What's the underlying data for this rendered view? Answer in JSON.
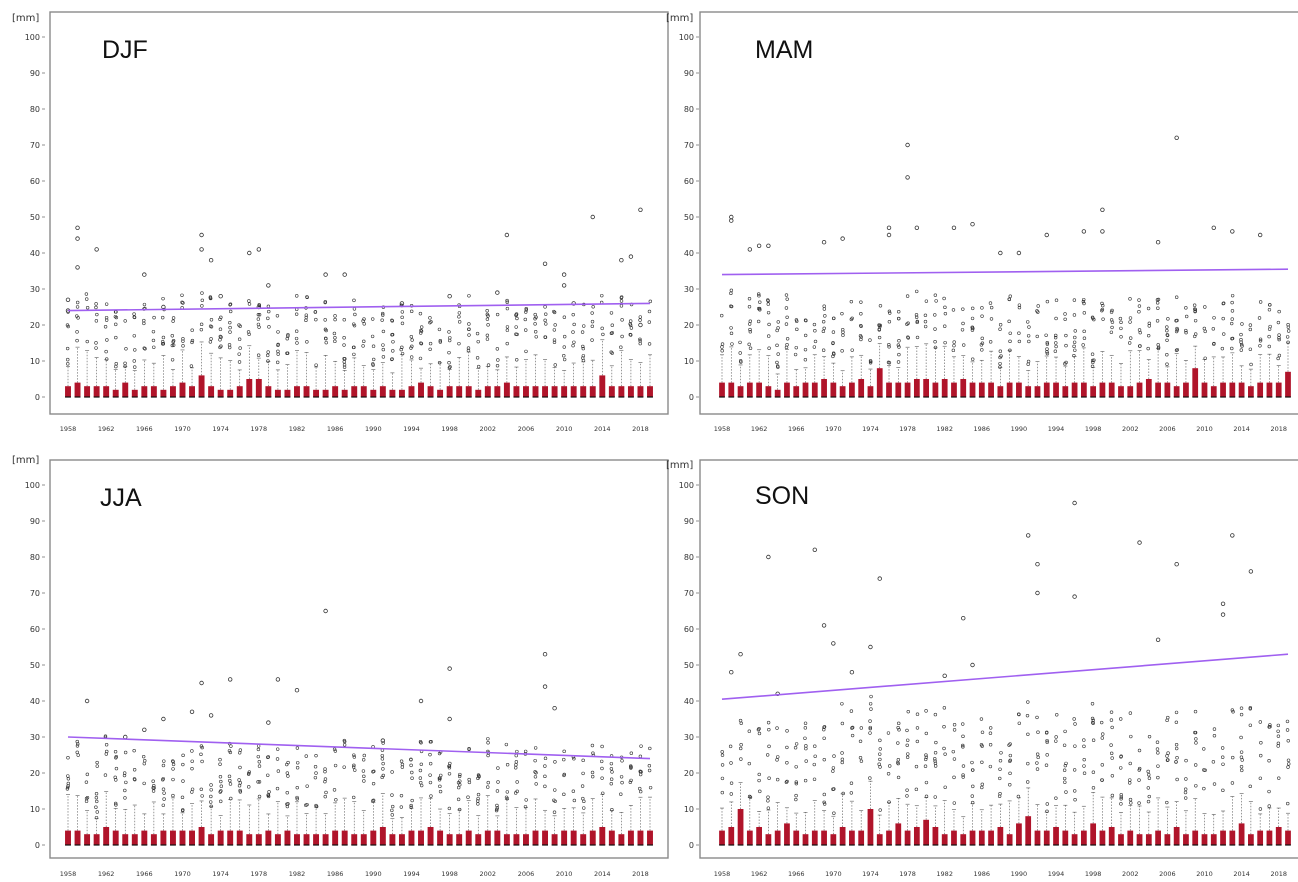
{
  "colors": {
    "box": "#b0142a",
    "whisker": "#555555",
    "outlier": "#333333",
    "trend": "#a060f0",
    "frame": "#8a8a8a"
  },
  "chart_data": [
    {
      "type": "box",
      "title": "DJF",
      "ylabel": "[mm]",
      "ylim": [
        0,
        100
      ],
      "yticks": [
        0,
        10,
        20,
        30,
        40,
        50,
        60,
        70,
        80,
        90,
        100
      ],
      "xticks": [
        "1958",
        "1962",
        "1966",
        "1970",
        "1974",
        "1978",
        "1982",
        "1986",
        "1990",
        "1994",
        "1998",
        "2002",
        "2006",
        "2010",
        "2014",
        "2018"
      ],
      "x_range": [
        1958,
        2019
      ],
      "trend": {
        "start": [
          1958,
          24
        ],
        "end": [
          2019,
          26
        ]
      },
      "box_heights": [
        3,
        4,
        3,
        3,
        3,
        2,
        4,
        2,
        3,
        3,
        2,
        3,
        4,
        3,
        6,
        3,
        2,
        2,
        3,
        5,
        5,
        3,
        2,
        2,
        3,
        3,
        2,
        2,
        3,
        2,
        3,
        3,
        2,
        3,
        2,
        2,
        3,
        4,
        3,
        2,
        3,
        3,
        3,
        2,
        3,
        3,
        4,
        3,
        3,
        3,
        3,
        3,
        3,
        3,
        3,
        3,
        6,
        3,
        3,
        3,
        3,
        3
      ],
      "outliers": [
        [
          1958,
          27
        ],
        [
          1958,
          24
        ],
        [
          1959,
          47
        ],
        [
          1959,
          44
        ],
        [
          1959,
          36
        ],
        [
          1961,
          41
        ],
        [
          1966,
          34
        ],
        [
          1968,
          25
        ],
        [
          1972,
          45
        ],
        [
          1972,
          41
        ],
        [
          1973,
          38
        ],
        [
          1974,
          28
        ],
        [
          1977,
          40
        ],
        [
          1978,
          41
        ],
        [
          1978,
          25
        ],
        [
          1979,
          31
        ],
        [
          1985,
          34
        ],
        [
          1987,
          34
        ],
        [
          1993,
          26
        ],
        [
          1998,
          28
        ],
        [
          2003,
          29
        ],
        [
          2004,
          45
        ],
        [
          2008,
          37
        ],
        [
          2010,
          34
        ],
        [
          2010,
          31
        ],
        [
          2011,
          26
        ],
        [
          2013,
          50
        ],
        [
          2016,
          38
        ],
        [
          2017,
          39
        ],
        [
          2018,
          52
        ],
        [
          2018,
          20
        ]
      ]
    },
    {
      "type": "box",
      "title": "MAM",
      "ylabel": "[mm]",
      "ylim": [
        0,
        100
      ],
      "yticks": [
        0,
        10,
        20,
        30,
        40,
        50,
        60,
        70,
        80,
        90,
        100
      ],
      "xticks": [
        "1958",
        "1962",
        "1966",
        "1970",
        "1974",
        "1978",
        "1982",
        "1986",
        "1990",
        "1994",
        "1998",
        "2002",
        "2006",
        "2010",
        "2014",
        "2018"
      ],
      "x_range": [
        1958,
        2019
      ],
      "trend": {
        "start": [
          1958,
          34
        ],
        "end": [
          2019,
          35.5
        ]
      },
      "box_heights": [
        4,
        4,
        3,
        4,
        4,
        3,
        2,
        4,
        3,
        4,
        4,
        5,
        4,
        3,
        4,
        5,
        3,
        8,
        4,
        4,
        4,
        5,
        5,
        4,
        5,
        4,
        5,
        4,
        4,
        4,
        3,
        4,
        4,
        3,
        3,
        4,
        4,
        3,
        4,
        4,
        3,
        4,
        4,
        3,
        3,
        4,
        5,
        4,
        4,
        3,
        4,
        8,
        4,
        3,
        4,
        4,
        4,
        3,
        4,
        4,
        4,
        7
      ],
      "outliers": [
        [
          1959,
          50
        ],
        [
          1959,
          49
        ],
        [
          1961,
          41
        ],
        [
          1962,
          42
        ],
        [
          1963,
          42
        ],
        [
          1969,
          43
        ],
        [
          1971,
          44
        ],
        [
          1976,
          47
        ],
        [
          1976,
          45
        ],
        [
          1978,
          70
        ],
        [
          1978,
          61
        ],
        [
          1979,
          47
        ],
        [
          1983,
          47
        ],
        [
          1985,
          48
        ],
        [
          1988,
          40
        ],
        [
          1990,
          40
        ],
        [
          1993,
          45
        ],
        [
          1997,
          46
        ],
        [
          1999,
          52
        ],
        [
          1999,
          46
        ],
        [
          2005,
          43
        ],
        [
          2007,
          72
        ],
        [
          2011,
          47
        ],
        [
          2013,
          46
        ],
        [
          2016,
          45
        ]
      ]
    },
    {
      "type": "box",
      "title": "JJA",
      "ylabel": "[mm]",
      "ylim": [
        0,
        100
      ],
      "yticks": [
        0,
        10,
        20,
        30,
        40,
        50,
        60,
        70,
        80,
        90,
        100
      ],
      "xticks": [
        "1958",
        "1962",
        "1966",
        "1970",
        "1974",
        "1978",
        "1982",
        "1986",
        "1990",
        "1994",
        "1998",
        "2002",
        "2006",
        "2010",
        "2014",
        "2018"
      ],
      "x_range": [
        1958,
        2019
      ],
      "trend": {
        "start": [
          1958,
          30
        ],
        "end": [
          2019,
          24
        ]
      },
      "box_heights": [
        4,
        4,
        3,
        3,
        5,
        4,
        3,
        3,
        4,
        3,
        4,
        4,
        4,
        4,
        5,
        3,
        4,
        4,
        4,
        3,
        3,
        4,
        3,
        4,
        3,
        3,
        3,
        3,
        4,
        4,
        3,
        3,
        4,
        5,
        3,
        3,
        4,
        4,
        5,
        4,
        3,
        3,
        4,
        3,
        4,
        4,
        3,
        3,
        3,
        4,
        4,
        3,
        4,
        4,
        3,
        4,
        5,
        4,
        3,
        4,
        4,
        4
      ],
      "outliers": [
        [
          1960,
          40
        ],
        [
          1964,
          30
        ],
        [
          1966,
          32
        ],
        [
          1968,
          35
        ],
        [
          1971,
          37
        ],
        [
          1972,
          45
        ],
        [
          1973,
          36
        ],
        [
          1975,
          46
        ],
        [
          1979,
          34
        ],
        [
          1980,
          46
        ],
        [
          1982,
          43
        ],
        [
          1985,
          65
        ],
        [
          1991,
          29
        ],
        [
          1995,
          40
        ],
        [
          1998,
          49
        ],
        [
          1998,
          35
        ],
        [
          2008,
          53
        ],
        [
          2008,
          44
        ],
        [
          2009,
          38
        ]
      ]
    },
    {
      "type": "box",
      "title": "SON",
      "ylabel": "[mm]",
      "ylim": [
        0,
        100
      ],
      "yticks": [
        0,
        10,
        20,
        30,
        40,
        50,
        60,
        70,
        80,
        90,
        100
      ],
      "xticks": [
        "1958",
        "1962",
        "1966",
        "1970",
        "1974",
        "1978",
        "1982",
        "1986",
        "1990",
        "1994",
        "1998",
        "2002",
        "2006",
        "2010",
        "2014",
        "2018"
      ],
      "x_range": [
        1958,
        2019
      ],
      "trend": {
        "start": [
          1958,
          40.5
        ],
        "end": [
          2019,
          53
        ]
      },
      "box_heights": [
        4,
        5,
        10,
        4,
        5,
        3,
        4,
        6,
        4,
        3,
        4,
        4,
        3,
        5,
        4,
        4,
        10,
        3,
        4,
        6,
        4,
        5,
        7,
        5,
        3,
        4,
        3,
        4,
        4,
        4,
        5,
        3,
        6,
        8,
        4,
        4,
        5,
        4,
        3,
        4,
        6,
        4,
        5,
        3,
        4,
        3,
        3,
        4,
        3,
        5,
        3,
        4,
        3,
        3,
        4,
        4,
        6,
        3,
        4,
        4,
        5,
        4
      ],
      "outliers": [
        [
          1959,
          48
        ],
        [
          1960,
          53
        ],
        [
          1963,
          80
        ],
        [
          1964,
          42
        ],
        [
          1968,
          82
        ],
        [
          1969,
          61
        ],
        [
          1970,
          56
        ],
        [
          1972,
          48
        ],
        [
          1974,
          55
        ],
        [
          1975,
          74
        ],
        [
          1982,
          47
        ],
        [
          1984,
          63
        ],
        [
          1985,
          50
        ],
        [
          1991,
          86
        ],
        [
          1992,
          78
        ],
        [
          1992,
          70
        ],
        [
          1996,
          95
        ],
        [
          1996,
          69
        ],
        [
          2003,
          84
        ],
        [
          2005,
          57
        ],
        [
          2007,
          78
        ],
        [
          2012,
          67
        ],
        [
          2012,
          64
        ],
        [
          2013,
          86
        ],
        [
          2015,
          76
        ]
      ]
    }
  ]
}
